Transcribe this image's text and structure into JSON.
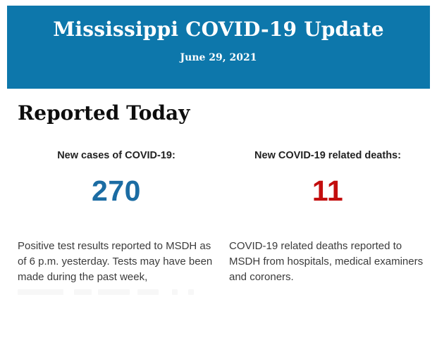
{
  "banner": {
    "title": "Mississippi COVID-19 Update",
    "date": "June 29, 2021",
    "background_color": "#0d77ab",
    "text_color": "#ffffff"
  },
  "section": {
    "title": "Reported Today"
  },
  "stats": [
    {
      "id": "new-cases",
      "label": "New cases of COVID-19:",
      "value": "270",
      "value_color": "#1b6ca3",
      "description": "Positive test results reported to MSDH as of 6 p.m. yesterday. Tests may have been made during the past week,"
    },
    {
      "id": "new-deaths",
      "label": "New COVID-19 related deaths:",
      "value": "11",
      "value_color": "#c30e0e",
      "description": "COVID-19 related deaths reported to MSDH from hospitals, medical examiners and coroners."
    }
  ]
}
